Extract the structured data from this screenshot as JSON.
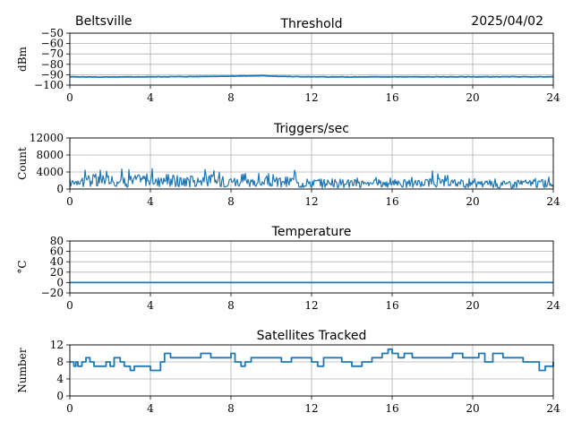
{
  "header": {
    "station": "Beltsville",
    "date": "2025/04/02"
  },
  "chart_data": [
    {
      "type": "line",
      "title": "Threshold",
      "xlabel": "",
      "ylabel": "dBm",
      "xlim": [
        0,
        24
      ],
      "ylim": [
        -100,
        -50
      ],
      "xticks": [
        "0",
        "4",
        "8",
        "12",
        "16",
        "20",
        "24"
      ],
      "yticks": [
        "−100",
        "−90",
        "−80",
        "−70",
        "−60",
        "−50"
      ],
      "grid": true,
      "color": "#1f77b4",
      "series": [
        {
          "x": [
            0,
            2,
            4,
            6,
            8,
            9.5,
            11,
            12,
            14,
            16,
            18,
            20,
            22,
            24
          ],
          "y": [
            -92.0,
            -92.3,
            -92.0,
            -91.8,
            -91.3,
            -91.0,
            -91.8,
            -92.0,
            -92.2,
            -92.0,
            -92.1,
            -92.0,
            -92.0,
            -92.0
          ]
        }
      ]
    },
    {
      "type": "line",
      "title": "Triggers/sec",
      "xlabel": "",
      "ylabel": "Count",
      "xlim": [
        0,
        24
      ],
      "ylim": [
        0,
        12000
      ],
      "xticks": [
        "0",
        "4",
        "8",
        "12",
        "16",
        "20",
        "24"
      ],
      "yticks": [
        "0",
        "4000",
        "8000",
        "12000"
      ],
      "grid": true,
      "color": "#1f77b4",
      "series": [
        {
          "x": [
            0,
            1,
            2,
            3,
            4,
            5,
            6,
            7,
            8,
            9,
            10,
            11,
            12,
            13,
            14,
            15,
            16,
            17,
            18,
            19,
            20,
            21,
            22,
            23,
            24
          ],
          "y": [
            2000,
            2800,
            2600,
            2500,
            2900,
            2600,
            2500,
            2700,
            2200,
            2000,
            2100,
            2300,
            1800,
            1900,
            1800,
            1700,
            1800,
            1700,
            1900,
            1800,
            1600,
            1700,
            1600,
            1700,
            1900
          ],
          "peaks": [
            4500,
            5300,
            5000,
            5000,
            5500,
            5000,
            5000,
            5200,
            4000,
            3800,
            3600,
            5000,
            3000,
            2800,
            3000,
            2800,
            3000,
            3000,
            4800,
            2800,
            2500,
            2700,
            2400,
            2600,
            3000
          ]
        }
      ]
    },
    {
      "type": "line",
      "title": "Temperature",
      "xlabel": "",
      "ylabel": "°C",
      "xlim": [
        0,
        24
      ],
      "ylim": [
        -20,
        80
      ],
      "xticks": [
        "0",
        "4",
        "8",
        "12",
        "16",
        "20",
        "24"
      ],
      "yticks": [
        "−20",
        "0",
        "20",
        "40",
        "60",
        "80"
      ],
      "grid": true,
      "color": "#1f77b4",
      "series": [
        {
          "x": [
            0,
            24
          ],
          "y": [
            0,
            0
          ]
        }
      ]
    },
    {
      "type": "line",
      "title": "Satellites Tracked",
      "xlabel": "",
      "ylabel": "Number",
      "xlim": [
        0,
        24
      ],
      "ylim": [
        0,
        12
      ],
      "xticks": [
        "0",
        "4",
        "8",
        "12",
        "16",
        "20",
        "24"
      ],
      "yticks": [
        "0",
        "4",
        "8",
        "12"
      ],
      "grid": true,
      "color": "#1f77b4",
      "series": [
        {
          "x": [
            0,
            0.2,
            0.3,
            0.4,
            0.6,
            0.8,
            1.0,
            1.2,
            1.5,
            1.8,
            2.0,
            2.2,
            2.5,
            2.7,
            3.0,
            3.2,
            3.5,
            4.0,
            4.3,
            4.5,
            4.7,
            5.0,
            5.5,
            6.0,
            6.5,
            7.0,
            7.5,
            8.0,
            8.2,
            8.5,
            8.7,
            9.0,
            9.5,
            10.0,
            10.5,
            11.0,
            11.5,
            12.0,
            12.3,
            12.6,
            13.0,
            13.5,
            14.0,
            14.5,
            15.0,
            15.5,
            15.8,
            16.0,
            16.3,
            16.6,
            17.0,
            17.5,
            18.0,
            18.5,
            19.0,
            19.5,
            20.0,
            20.3,
            20.6,
            21.0,
            21.5,
            22.0,
            22.5,
            23.0,
            23.3,
            23.6,
            24.0
          ],
          "y": [
            8,
            7,
            8,
            7,
            8,
            9,
            8,
            7,
            7,
            8,
            7,
            9,
            8,
            7,
            6,
            7,
            7,
            6,
            6,
            8,
            10,
            9,
            9,
            9,
            10,
            9,
            9,
            10,
            8,
            7,
            8,
            9,
            9,
            9,
            8,
            9,
            9,
            8,
            7,
            9,
            9,
            8,
            7,
            8,
            9,
            10,
            11,
            10,
            9,
            10,
            9,
            9,
            9,
            9,
            10,
            9,
            9,
            10,
            8,
            10,
            9,
            9,
            8,
            8,
            6,
            7,
            8
          ]
        }
      ]
    }
  ]
}
